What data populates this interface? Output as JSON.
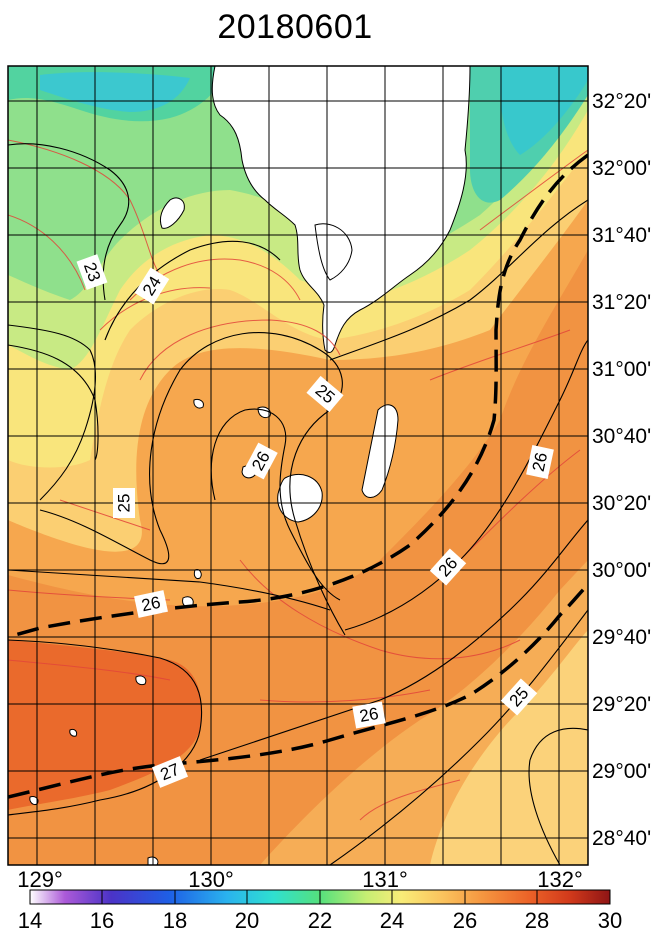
{
  "title": "20180601",
  "longitude_ticks": [
    "129°",
    "130°",
    "131°",
    "132°"
  ],
  "latitude_ticks": [
    "32°20'",
    "32°00'",
    "31°40'",
    "31°20'",
    "31°00'",
    "30°40'",
    "30°20'",
    "30°00'",
    "29°40'",
    "29°20'",
    "29°00'",
    "28°40'"
  ],
  "colorbar": {
    "ticks": [
      "14",
      "16",
      "18",
      "20",
      "22",
      "24",
      "26",
      "28",
      "30"
    ],
    "colors": [
      "#ffffff",
      "#7a2fb5",
      "#2a39c8",
      "#1e7ee6",
      "#25d7e8",
      "#39e389",
      "#9cea6b",
      "#f6f27a",
      "#fbc867",
      "#f59a44",
      "#ee6a2c",
      "#d8321d",
      "#9c1818"
    ]
  },
  "contour_labels": [
    {
      "id": "23",
      "text": "23"
    },
    {
      "id": "24",
      "text": "24"
    },
    {
      "id": "25a",
      "text": "25"
    },
    {
      "id": "25b",
      "text": "25"
    },
    {
      "id": "26a",
      "text": "26"
    },
    {
      "id": "26b",
      "text": "26"
    },
    {
      "id": "26c",
      "text": "26"
    },
    {
      "id": "26d",
      "text": "26"
    },
    {
      "id": "26e",
      "text": "26"
    },
    {
      "id": "27",
      "text": "27"
    },
    {
      "id": "25c",
      "text": "25"
    }
  ],
  "colors": {
    "sst_28_plus": "#ea6a2c",
    "sst_27": "#f19342",
    "sst_26": "#f6b25a",
    "sst_25": "#fbd67a",
    "sst_24": "#d6eb8a",
    "sst_23": "#9fe38c",
    "sst_22": "#5fd38e",
    "sst_21": "#3fc9c7",
    "land": "#ffffff",
    "contour_line": "#000000",
    "isotherm_thin": "#e2453a",
    "front_line": "#000000"
  }
}
